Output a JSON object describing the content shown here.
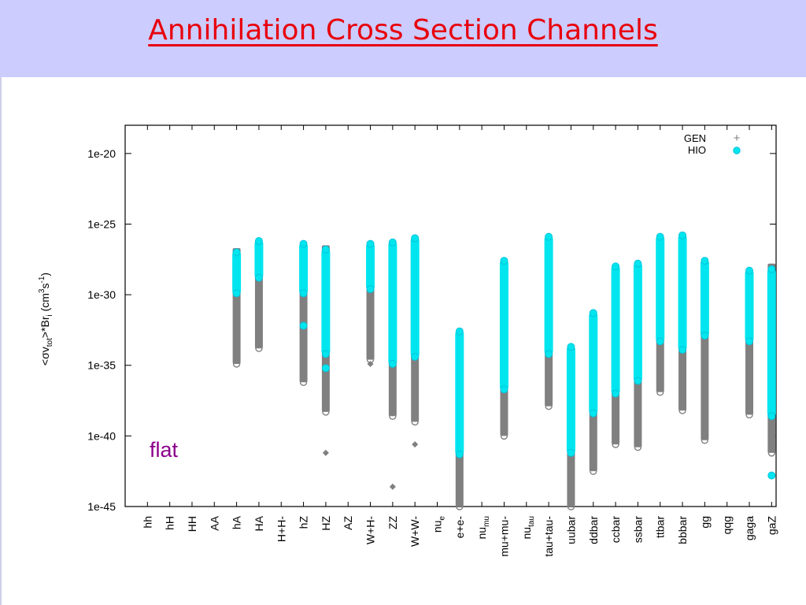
{
  "slide": {
    "title": "Annihilation Cross Section Channels",
    "annotation": "flat"
  },
  "colors": {
    "header_bg": "#ccccff",
    "title": "#e8000b",
    "gen": "#808080",
    "hio": "#00e5ee",
    "annotation": "#8b008b"
  },
  "chart_data": {
    "type": "scatter",
    "scale": "log",
    "ylabel": "<σv_tot>*Br_i  (cm^3 s^-1)",
    "y_exponent_range": [
      -45,
      -18
    ],
    "yticks": [
      "1e-20",
      "1e-25",
      "1e-30",
      "1e-35",
      "1e-40",
      "1e-45"
    ],
    "legend_position": "top-right",
    "categories": [
      "hh",
      "hH",
      "HH",
      "AA",
      "hA",
      "HA",
      "H+H-",
      "hZ",
      "HZ",
      "AZ",
      "W+H-",
      "ZZ",
      "W+W-",
      "nu_e",
      "e+e-",
      "nu_mu",
      "mu+mu-",
      "nu_tau",
      "tau+tau-",
      "uubar",
      "ddbar",
      "ccbar",
      "ssbar",
      "ttbar",
      "bbbar",
      "gg",
      "qqg",
      "gaga",
      "gaZ"
    ],
    "series": [
      {
        "name": "GEN",
        "symbol": "+",
        "ranges_log10": [
          null,
          null,
          null,
          null,
          [
            -34.9,
            -26.7
          ],
          [
            -33.8,
            -26.8
          ],
          null,
          [
            -36.2,
            -29.5
          ],
          [
            -38.3,
            -26.5
          ],
          null,
          [
            -34.6,
            -28.0
          ],
          [
            -38.6,
            -26.8
          ],
          [
            -39.0,
            -26.8
          ],
          null,
          [
            -45.0,
            -38.0
          ],
          null,
          [
            -40.0,
            -28.5
          ],
          null,
          [
            -37.9,
            -28.0
          ],
          [
            -45.0,
            -34.7
          ],
          [
            -42.5,
            -34.0
          ],
          [
            -40.6,
            -30.2
          ],
          [
            -40.8,
            -29.8
          ],
          [
            -36.9,
            -27.0
          ],
          [
            -38.2,
            -26.8
          ],
          [
            -40.3,
            -29.2
          ],
          null,
          [
            -38.5,
            -28.6
          ],
          [
            -41.2,
            -27.8
          ]
        ],
        "outliers_log10": [
          [],
          [],
          [],
          [],
          [],
          [],
          [],
          [],
          [
            -41.2
          ],
          [],
          [
            -34.9
          ],
          [
            -43.6
          ],
          [
            -40.6
          ],
          [],
          [],
          [],
          [],
          [],
          [],
          [],
          [],
          [],
          [],
          [],
          [],
          [],
          [],
          [],
          []
        ]
      },
      {
        "name": "HIO",
        "symbol": "o",
        "ranges_log10": [
          null,
          null,
          null,
          null,
          [
            -29.9,
            -27.0
          ],
          [
            -28.8,
            -26.2
          ],
          null,
          [
            -29.9,
            -26.4
          ],
          [
            -34.2,
            -26.8
          ],
          null,
          [
            -29.6,
            -26.4
          ],
          [
            -34.9,
            -26.3
          ],
          [
            -34.4,
            -26.0
          ],
          null,
          [
            -41.3,
            -32.6
          ],
          null,
          [
            -36.7,
            -27.6
          ],
          null,
          [
            -34.2,
            -25.9
          ],
          [
            -41.2,
            -33.7
          ],
          [
            -38.4,
            -31.3
          ],
          [
            -37.0,
            -28.0
          ],
          [
            -36.1,
            -27.8
          ],
          [
            -33.3,
            -25.9
          ],
          [
            -33.9,
            -25.8
          ],
          [
            -32.9,
            -27.6
          ],
          null,
          [
            -33.3,
            -28.3
          ],
          [
            -38.6,
            -28.2
          ]
        ],
        "outliers_log10": [
          [],
          [],
          [],
          [],
          [],
          [],
          [],
          [
            -32.2
          ],
          [
            -35.2
          ],
          [],
          [],
          [],
          [],
          [],
          [],
          [],
          [],
          [],
          [],
          [],
          [],
          [],
          [],
          [],
          [],
          [
            -32.9
          ],
          [],
          [],
          [
            -42.8
          ]
        ]
      }
    ]
  }
}
